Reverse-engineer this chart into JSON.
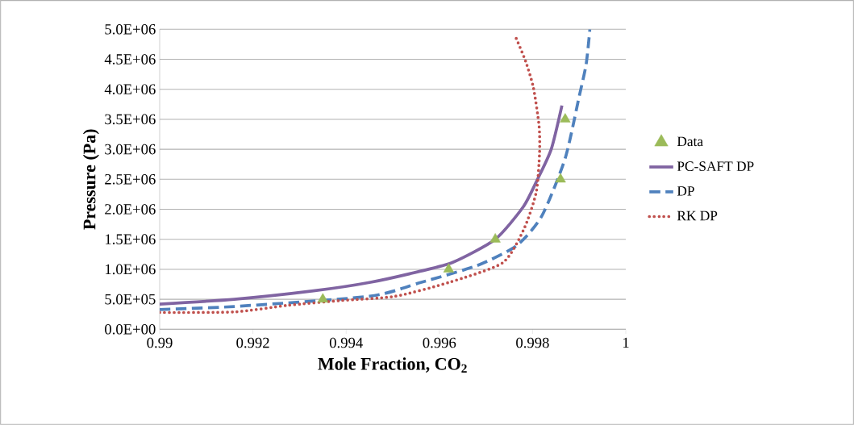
{
  "chart_data": {
    "type": "line",
    "xlabel": "Mole Fraction, CO$_{2}$",
    "ylabel": "Pressure (Pa)",
    "xlim": [
      0.99,
      1
    ],
    "xticks": [
      0.99,
      0.992,
      0.994,
      0.996,
      0.998,
      1
    ],
    "ylim": [
      0,
      5000000
    ],
    "yticks": [
      {
        "value": 0,
        "label": "0.0E+00"
      },
      {
        "value": 500000,
        "label": "5.0E+05"
      },
      {
        "value": 1000000,
        "label": "1.0E+06"
      },
      {
        "value": 1500000,
        "label": "1.5E+06"
      },
      {
        "value": 2000000,
        "label": "2.0E+06"
      },
      {
        "value": 2500000,
        "label": "2.5E+06"
      },
      {
        "value": 3000000,
        "label": "3.0E+06"
      },
      {
        "value": 3500000,
        "label": "3.5E+06"
      },
      {
        "value": 4000000,
        "label": "4.0E+06"
      },
      {
        "value": 4500000,
        "label": "4.5E+06"
      },
      {
        "value": 5000000,
        "label": "5.0E+06"
      }
    ],
    "grid": "y",
    "legend": "right",
    "series": [
      {
        "name": "Data",
        "type": "scatter",
        "marker": "triangle",
        "color": "#9bbb59",
        "x": [
          0.9935,
          0.9962,
          0.9972,
          0.9986,
          0.9987
        ],
        "values": [
          500000,
          1000000,
          1500000,
          2500000,
          3500000
        ]
      },
      {
        "name": "PC-SAFT DP",
        "line_style": "solid",
        "color": "#8064a2",
        "x": [
          0.99,
          0.9916,
          0.9933,
          0.9945,
          0.9956,
          0.9963,
          0.9972,
          0.9978,
          0.9981,
          0.9984,
          0.99863
        ],
        "values": [
          420000,
          500000,
          640000,
          780000,
          970000,
          1120000,
          1500000,
          2040000,
          2490000,
          3000000,
          3730000
        ]
      },
      {
        "name": "DP",
        "line_style": "dashed",
        "color": "#4f81bd",
        "x": [
          0.99,
          0.9916,
          0.9945,
          0.9956,
          0.9968,
          0.99765,
          0.9982,
          0.9987,
          0.999,
          0.99915,
          0.99923
        ],
        "values": [
          330000,
          380000,
          550000,
          780000,
          1060000,
          1390000,
          1890000,
          2850000,
          3880000,
          4420000,
          5000000
        ]
      },
      {
        "name": "RK DP",
        "line_style": "dotted",
        "color": "#c0504d",
        "x": [
          0.99,
          0.9916,
          0.99275,
          0.9939,
          0.99505,
          0.9962,
          0.99736,
          0.99782,
          0.99808,
          0.99815,
          0.99814,
          0.99802,
          0.99785,
          0.99761
        ],
        "values": [
          280000,
          290000,
          400000,
          480000,
          550000,
          780000,
          1110000,
          1680000,
          2290000,
          2940000,
          3390000,
          4020000,
          4470000,
          4920000
        ]
      }
    ]
  }
}
